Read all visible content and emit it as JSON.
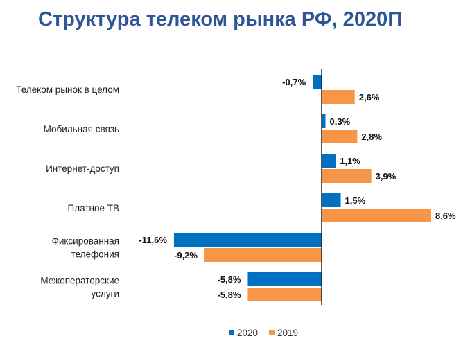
{
  "chart_data": {
    "type": "bar",
    "orientation": "horizontal",
    "title": "Структура телеком рынка РФ, 2020П",
    "categories": [
      [
        "Телеком рынок в целом"
      ],
      [
        "Мобильная связь"
      ],
      [
        "Интернет-доступ"
      ],
      [
        "Платное ТВ"
      ],
      [
        "Фиксированная",
        "телефония"
      ],
      [
        "Межоператорские",
        "услуги"
      ]
    ],
    "series": [
      {
        "name": "2020",
        "color": "#0070C0",
        "values": [
          -0.7,
          0.3,
          1.1,
          1.5,
          -11.6,
          -5.8
        ],
        "labels": [
          "-0,7%",
          "0,3%",
          "1,1%",
          "1,5%",
          "-11,6%",
          "-5,8%"
        ]
      },
      {
        "name": "2019",
        "color": "#F79646",
        "values": [
          2.6,
          2.8,
          3.9,
          8.6,
          -9.2,
          -5.8
        ],
        "labels": [
          "2,6%",
          "2,8%",
          "3,9%",
          "8,6%",
          "-9,2%",
          "-5,8%"
        ]
      }
    ],
    "xlabel": "",
    "ylabel": "",
    "grid": false,
    "legend": "bottom",
    "unit": "%"
  }
}
